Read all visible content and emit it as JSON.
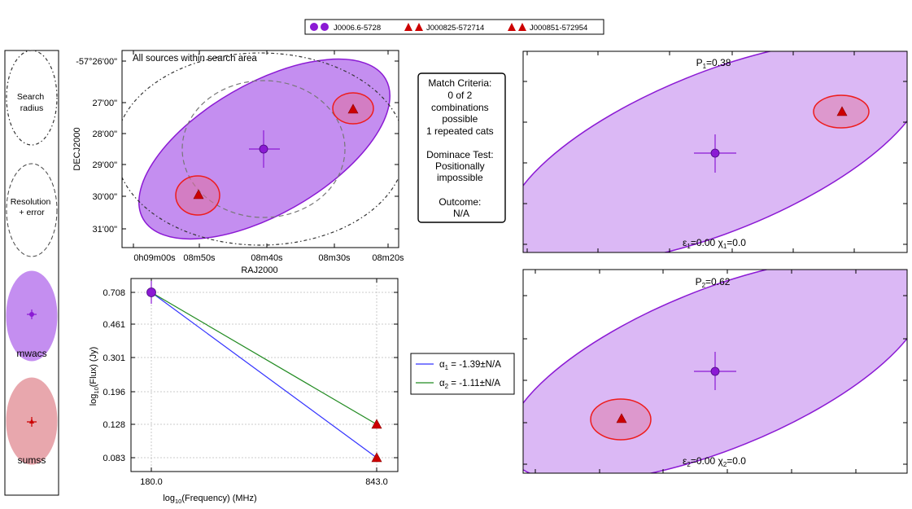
{
  "colors": {
    "mwacs": "#8b1ad4",
    "mwacs_fill": "#c48ef0",
    "sumss": "#ee1c1c",
    "sumss_fill": "#e8a7ad",
    "marker_red": "#cc0000",
    "line_blue": "#3333ff",
    "line_green": "#228b22"
  },
  "legend": {
    "items": [
      {
        "label": "J0006.6-5728",
        "marker": "circle"
      },
      {
        "label": "J000825-572714",
        "marker": "triangle"
      },
      {
        "label": "J000851-572954",
        "marker": "triangle"
      }
    ]
  },
  "key_panel": {
    "search_label": [
      "Search",
      "radius"
    ],
    "resolution_label": [
      "Resolution",
      "+ error"
    ],
    "mwacs_label": "mwacs",
    "sumss_label": "sumss"
  },
  "match_criteria": {
    "lines": [
      "Match Criteria:",
      "0 of 2",
      "combinations",
      "possible",
      "1 repeated cats",
      "",
      "Dominace Test:",
      "Positionally",
      "impossible",
      "",
      "Outcome:",
      "N/A"
    ]
  },
  "chart_data": [
    {
      "type": "scatter",
      "title": "All sources within search area",
      "xlabel": "RAJ2000",
      "ylabel": "DECJ2000",
      "xticks": [
        "0h09m00s",
        "08m50s",
        "08m40s",
        "08m30s",
        "08m20s"
      ],
      "yticks": [
        "-57°26'00\"",
        "27'00\"",
        "28'00\"",
        "29'00\"",
        "30'00\"",
        "31'00\""
      ],
      "points": [
        {
          "name": "J0006.6-5728",
          "ra_sec": 520.0,
          "dec_arcmin": 28.5,
          "marker": "circle"
        },
        {
          "name": "J000825-572714",
          "ra_sec": 505.0,
          "dec_arcmin": 27.4,
          "marker": "triangle"
        },
        {
          "name": "J000851-572954",
          "ra_sec": 531.0,
          "dec_arcmin": 30.0,
          "marker": "triangle"
        }
      ]
    },
    {
      "type": "line",
      "xlabel": "log10(Frequency) (MHz)",
      "ylabel": "log10(Flux) (Jy)",
      "xticks": [
        "180.0",
        "843.0"
      ],
      "yticks": [
        "0.708",
        "0.461",
        "0.301",
        "0.196",
        "0.128",
        "0.083"
      ],
      "x": [
        180.0,
        843.0
      ],
      "series": [
        {
          "name": "α1 = -1.39±N/A",
          "values": [
            0.708,
            0.083
          ],
          "color": "blue"
        },
        {
          "name": "α2 = -1.11±N/A",
          "values": [
            0.708,
            0.128
          ],
          "color": "green"
        }
      ]
    }
  ],
  "combos": [
    {
      "prob_label": "P",
      "prob_sub": "1",
      "prob_value": "=0.38",
      "eps_label": "ε",
      "eps_sub": "1",
      "eps_value": "=0.00",
      "chi_label": " χ",
      "chi_sub": "1",
      "chi_value": "=0.0"
    },
    {
      "prob_label": "P",
      "prob_sub": "2",
      "prob_value": "=0.62",
      "eps_label": "ε",
      "eps_sub": "2",
      "eps_value": "=0.00",
      "chi_label": " χ",
      "chi_sub": "2",
      "chi_value": "=0.0"
    }
  ],
  "sed_legend": [
    {
      "sym": "α",
      "sub": "1",
      "text": " = -1.39±N/A"
    },
    {
      "sym": "α",
      "sub": "2",
      "text": " = -1.11±N/A"
    }
  ]
}
